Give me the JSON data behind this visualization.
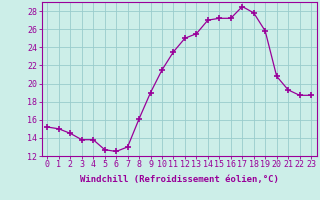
{
  "x": [
    0,
    1,
    2,
    3,
    4,
    5,
    6,
    7,
    8,
    9,
    10,
    11,
    12,
    13,
    14,
    15,
    16,
    17,
    18,
    19,
    20,
    21,
    22,
    23
  ],
  "y": [
    15.2,
    15.0,
    14.5,
    13.8,
    13.8,
    12.7,
    12.5,
    13.0,
    16.1,
    19.0,
    21.5,
    23.5,
    25.0,
    25.5,
    27.0,
    27.2,
    27.2,
    28.5,
    27.8,
    25.8,
    20.8,
    19.3,
    18.7,
    18.7
  ],
  "line_color": "#990099",
  "marker": "+",
  "marker_size": 4,
  "marker_lw": 1.2,
  "bg_color": "#cceee8",
  "grid_color": "#99cccc",
  "xlabel": "Windchill (Refroidissement éolien,°C)",
  "xlabel_fontsize": 6.5,
  "tick_fontsize": 6.0,
  "ylim": [
    12,
    29
  ],
  "yticks": [
    12,
    14,
    16,
    18,
    20,
    22,
    24,
    26,
    28
  ],
  "xlim": [
    -0.5,
    23.5
  ],
  "line_width": 0.9
}
